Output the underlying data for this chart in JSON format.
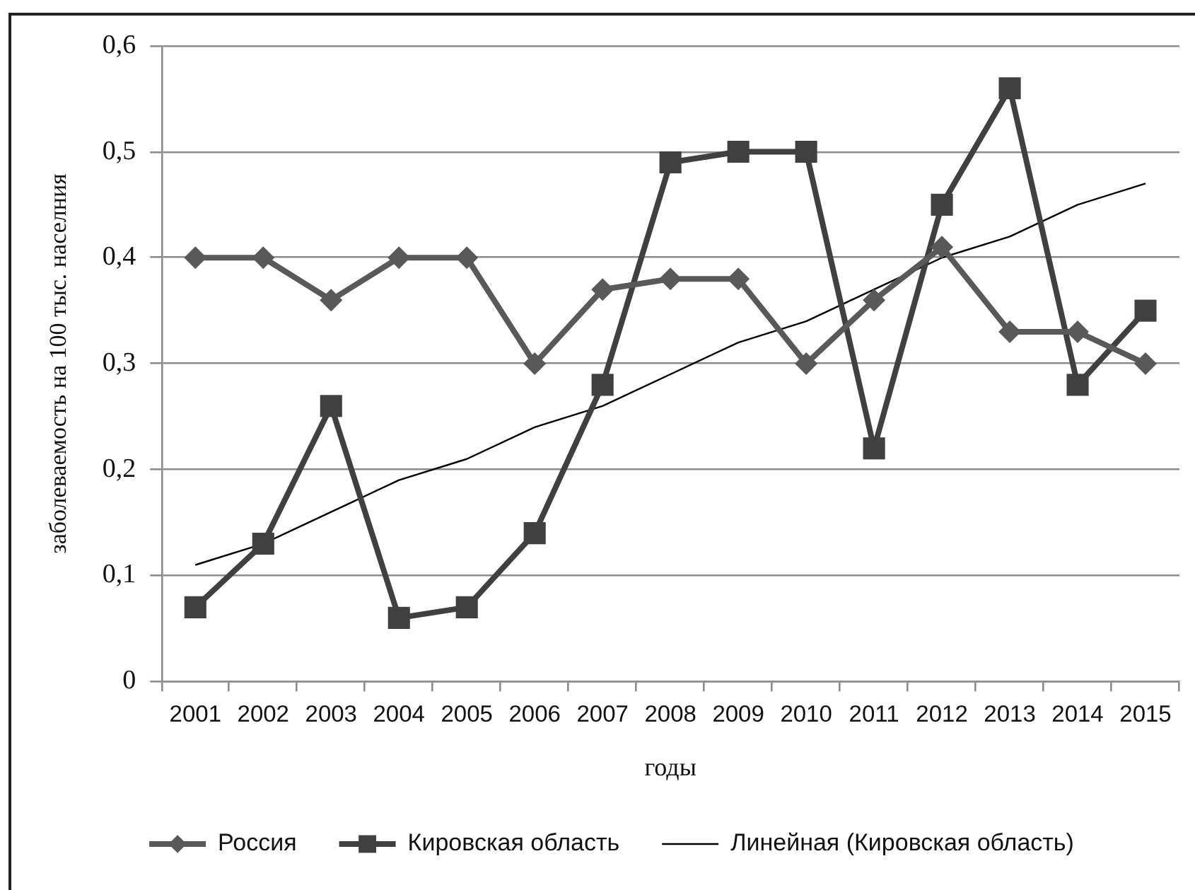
{
  "chart_data": {
    "type": "line",
    "xlabel": "годы",
    "ylabel": "заболеваемость на 100 тыс. населния",
    "categories": [
      "2001",
      "2002",
      "2003",
      "2004",
      "2005",
      "2006",
      "2007",
      "2008",
      "2009",
      "2010",
      "2011",
      "2012",
      "2013",
      "2014",
      "2015"
    ],
    "series": [
      {
        "name": "Россия",
        "color": "#595959",
        "marker": "diamond",
        "values": [
          0.4,
          0.4,
          0.36,
          0.4,
          0.4,
          0.3,
          0.37,
          0.38,
          0.38,
          0.3,
          0.36,
          0.41,
          0.33,
          0.33,
          0.3
        ]
      },
      {
        "name": "Кировская область",
        "color": "#404040",
        "marker": "square",
        "values": [
          0.07,
          0.13,
          0.26,
          0.06,
          0.07,
          0.14,
          0.28,
          0.49,
          0.5,
          0.5,
          0.22,
          0.45,
          0.56,
          0.28,
          0.35
        ]
      },
      {
        "name": "Линейная (Кировская область)",
        "color": "#000000",
        "marker": "none",
        "values": [
          0.11,
          0.13,
          0.16,
          0.19,
          0.21,
          0.24,
          0.26,
          0.29,
          0.32,
          0.34,
          0.37,
          0.4,
          0.42,
          0.45,
          0.47
        ]
      }
    ],
    "ylim": [
      0,
      0.6
    ],
    "yticks": [
      0,
      {
        "value": 0.1,
        "label": "0,1"
      },
      {
        "value": 0.2,
        "label": "0,2"
      },
      {
        "value": 0.3,
        "label": "0,3"
      },
      {
        "value": 0.4,
        "label": "0,4"
      },
      {
        "value": 0.5,
        "label": "0,5"
      },
      {
        "value": 0.6,
        "label": "0,6"
      }
    ],
    "grid": "y",
    "legend": "bottom",
    "line_style": "solid"
  }
}
